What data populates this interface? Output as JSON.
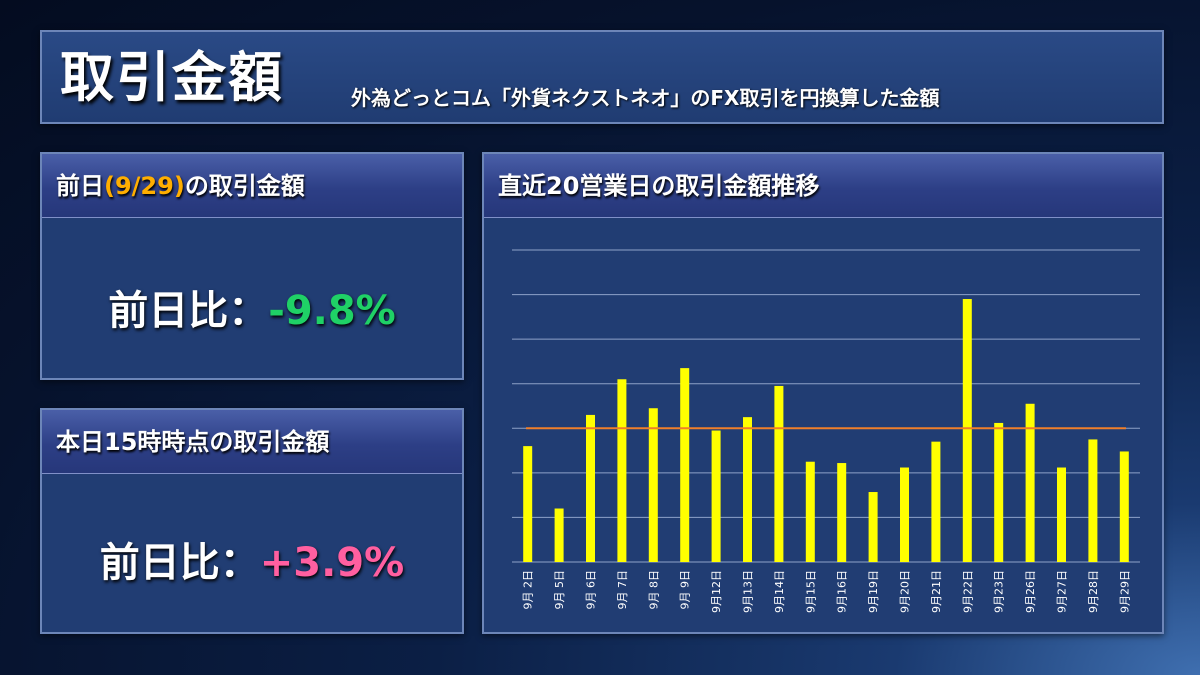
{
  "header": {
    "title": "取引金額",
    "subtitle": "外為どっとコム「外貨ネクストネオ」のFX取引を円換算した金額"
  },
  "prev_day": {
    "label_pre": "前日",
    "date": "(9/29)",
    "label_post": "の取引金額",
    "compare_label": "前日比：",
    "change": "-9.8%"
  },
  "today": {
    "label": "本日15時時点の取引金額",
    "compare_label": "前日比：",
    "change": "+3.9%"
  },
  "colors": {
    "bar": "#ffff00",
    "avg_line": "#f07f2a",
    "negative": "#1fd166",
    "positive": "#ff5fa0"
  },
  "chart_data": {
    "type": "bar",
    "title": "直近20営業日の取引金額推移",
    "categories": [
      "9月 2日",
      "9月 5日",
      "9月 6日",
      "9月 7日",
      "9月 8日",
      "9月 9日",
      "9月12日",
      "9月13日",
      "9月14日",
      "9月15日",
      "9月16日",
      "9月19日",
      "9月20日",
      "9月21日",
      "9月22日",
      "9月23日",
      "9月26日",
      "9月27日",
      "9月28日",
      "9月29日"
    ],
    "values": [
      2.6,
      1.2,
      3.3,
      4.1,
      3.45,
      4.35,
      2.95,
      3.25,
      3.95,
      2.25,
      2.22,
      1.57,
      2.12,
      2.7,
      5.9,
      3.12,
      3.55,
      2.12,
      2.75,
      2.48
    ],
    "average": 3.0,
    "ylim": [
      0,
      7
    ],
    "grid": true,
    "legend": false
  }
}
